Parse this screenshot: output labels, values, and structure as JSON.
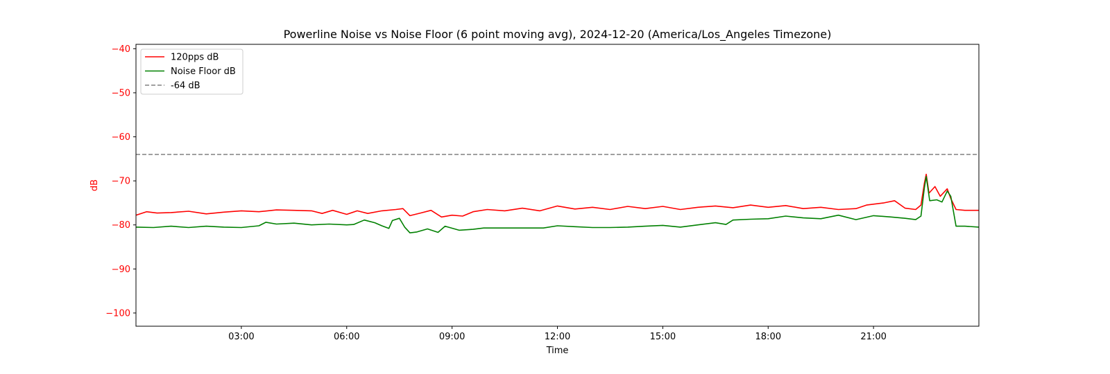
{
  "chart_data": {
    "type": "line",
    "title": "Powerline Noise vs Noise Floor (6 point moving avg), 2024-12-20 (America/Los_Angeles Timezone)",
    "xlabel": "Time",
    "ylabel": "dB",
    "xlim": [
      0,
      24
    ],
    "ylim": [
      -103,
      -39
    ],
    "x_ticks": [
      {
        "x": 3,
        "label": "03:00"
      },
      {
        "x": 6,
        "label": "06:00"
      },
      {
        "x": 9,
        "label": "09:00"
      },
      {
        "x": 12,
        "label": "12:00"
      },
      {
        "x": 15,
        "label": "15:00"
      },
      {
        "x": 18,
        "label": "18:00"
      },
      {
        "x": 21,
        "label": "21:00"
      }
    ],
    "y_ticks": [
      {
        "y": -40,
        "label": "−40"
      },
      {
        "y": -50,
        "label": "−50"
      },
      {
        "y": -60,
        "label": "−60"
      },
      {
        "y": -70,
        "label": "−70"
      },
      {
        "y": -80,
        "label": "−80"
      },
      {
        "y": -90,
        "label": "−90"
      },
      {
        "y": -100,
        "label": "−100"
      }
    ],
    "grid": false,
    "legend_position": "top-left",
    "series": [
      {
        "name": "120pps dB",
        "color": "#ff0000",
        "style": "solid",
        "points": [
          [
            0,
            -77.8
          ],
          [
            0.3,
            -77.0
          ],
          [
            0.6,
            -77.3
          ],
          [
            1.0,
            -77.2
          ],
          [
            1.5,
            -76.9
          ],
          [
            2.0,
            -77.5
          ],
          [
            2.5,
            -77.1
          ],
          [
            3.0,
            -76.8
          ],
          [
            3.5,
            -77.0
          ],
          [
            4.0,
            -76.6
          ],
          [
            4.5,
            -76.7
          ],
          [
            5.0,
            -76.8
          ],
          [
            5.3,
            -77.4
          ],
          [
            5.6,
            -76.7
          ],
          [
            6.0,
            -77.6
          ],
          [
            6.3,
            -76.8
          ],
          [
            6.6,
            -77.4
          ],
          [
            7.0,
            -76.8
          ],
          [
            7.4,
            -76.5
          ],
          [
            7.6,
            -76.3
          ],
          [
            7.8,
            -77.9
          ],
          [
            8.1,
            -77.3
          ],
          [
            8.4,
            -76.7
          ],
          [
            8.7,
            -78.2
          ],
          [
            9.0,
            -77.8
          ],
          [
            9.3,
            -78.0
          ],
          [
            9.6,
            -77.0
          ],
          [
            10.0,
            -76.5
          ],
          [
            10.5,
            -76.8
          ],
          [
            11.0,
            -76.2
          ],
          [
            11.5,
            -76.8
          ],
          [
            12.0,
            -75.7
          ],
          [
            12.5,
            -76.4
          ],
          [
            13.0,
            -76.0
          ],
          [
            13.5,
            -76.5
          ],
          [
            14.0,
            -75.8
          ],
          [
            14.5,
            -76.3
          ],
          [
            15.0,
            -75.8
          ],
          [
            15.5,
            -76.5
          ],
          [
            16.0,
            -76.0
          ],
          [
            16.5,
            -75.7
          ],
          [
            17.0,
            -76.1
          ],
          [
            17.5,
            -75.5
          ],
          [
            18.0,
            -76.0
          ],
          [
            18.5,
            -75.6
          ],
          [
            19.0,
            -76.3
          ],
          [
            19.5,
            -76.0
          ],
          [
            20.0,
            -76.5
          ],
          [
            20.5,
            -76.3
          ],
          [
            20.8,
            -75.5
          ],
          [
            21.3,
            -75.0
          ],
          [
            21.6,
            -74.5
          ],
          [
            21.9,
            -76.2
          ],
          [
            22.2,
            -76.5
          ],
          [
            22.35,
            -75.5
          ],
          [
            22.45,
            -70.5
          ],
          [
            22.5,
            -68.5
          ],
          [
            22.58,
            -72.8
          ],
          [
            22.75,
            -71.3
          ],
          [
            22.9,
            -73.5
          ],
          [
            23.1,
            -71.8
          ],
          [
            23.2,
            -74.0
          ],
          [
            23.35,
            -76.5
          ],
          [
            23.6,
            -76.7
          ],
          [
            24,
            -76.7
          ]
        ]
      },
      {
        "name": "Noise Floor dB",
        "color": "#008000",
        "style": "solid",
        "points": [
          [
            0,
            -80.5
          ],
          [
            0.5,
            -80.6
          ],
          [
            1.0,
            -80.3
          ],
          [
            1.5,
            -80.6
          ],
          [
            2.0,
            -80.3
          ],
          [
            2.5,
            -80.5
          ],
          [
            3.0,
            -80.6
          ],
          [
            3.5,
            -80.2
          ],
          [
            3.7,
            -79.4
          ],
          [
            4.0,
            -79.8
          ],
          [
            4.5,
            -79.6
          ],
          [
            5.0,
            -80.0
          ],
          [
            5.5,
            -79.8
          ],
          [
            6.0,
            -80.0
          ],
          [
            6.2,
            -79.9
          ],
          [
            6.5,
            -78.9
          ],
          [
            6.8,
            -79.5
          ],
          [
            7.0,
            -80.2
          ],
          [
            7.2,
            -80.8
          ],
          [
            7.3,
            -79.0
          ],
          [
            7.5,
            -78.5
          ],
          [
            7.65,
            -80.5
          ],
          [
            7.8,
            -81.8
          ],
          [
            8.0,
            -81.6
          ],
          [
            8.3,
            -80.9
          ],
          [
            8.6,
            -81.7
          ],
          [
            8.8,
            -80.3
          ],
          [
            9.2,
            -81.2
          ],
          [
            9.6,
            -81.0
          ],
          [
            9.9,
            -80.7
          ],
          [
            11.0,
            -80.7
          ],
          [
            11.6,
            -80.7
          ],
          [
            12.0,
            -80.2
          ],
          [
            12.5,
            -80.4
          ],
          [
            13.0,
            -80.6
          ],
          [
            13.5,
            -80.6
          ],
          [
            14.0,
            -80.5
          ],
          [
            14.5,
            -80.3
          ],
          [
            15.0,
            -80.1
          ],
          [
            15.5,
            -80.5
          ],
          [
            16.0,
            -80.0
          ],
          [
            16.5,
            -79.5
          ],
          [
            16.8,
            -79.9
          ],
          [
            17.0,
            -78.9
          ],
          [
            17.5,
            -78.7
          ],
          [
            18.0,
            -78.6
          ],
          [
            18.5,
            -78.0
          ],
          [
            19.0,
            -78.4
          ],
          [
            19.5,
            -78.6
          ],
          [
            20.0,
            -77.8
          ],
          [
            20.5,
            -78.8
          ],
          [
            21.0,
            -77.9
          ],
          [
            21.5,
            -78.2
          ],
          [
            21.9,
            -78.5
          ],
          [
            22.2,
            -78.8
          ],
          [
            22.35,
            -78.0
          ],
          [
            22.45,
            -71.5
          ],
          [
            22.5,
            -69.0
          ],
          [
            22.6,
            -74.5
          ],
          [
            22.8,
            -74.3
          ],
          [
            22.95,
            -74.8
          ],
          [
            23.1,
            -72.3
          ],
          [
            23.2,
            -73.5
          ],
          [
            23.35,
            -80.3
          ],
          [
            23.6,
            -80.3
          ],
          [
            24,
            -80.5
          ]
        ]
      },
      {
        "name": "-64 dB",
        "color": "#808080",
        "style": "dashed",
        "points": [
          [
            0,
            -64
          ],
          [
            24,
            -64
          ]
        ]
      }
    ]
  }
}
